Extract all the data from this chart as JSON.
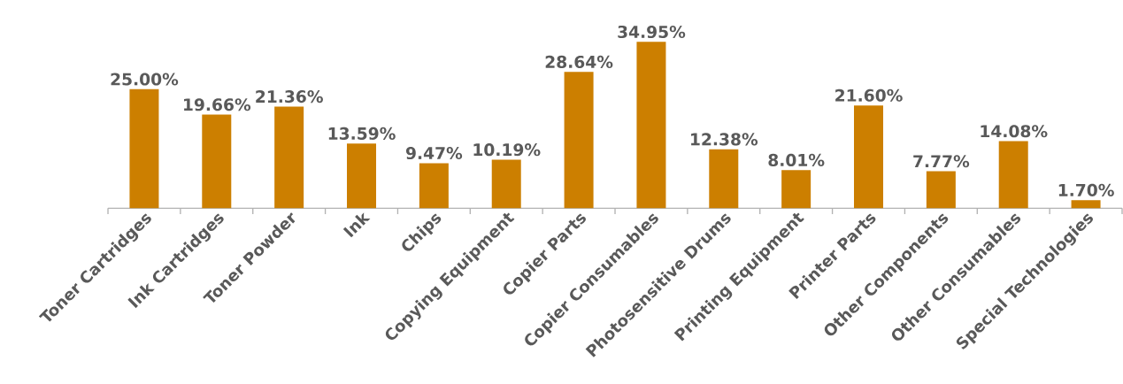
{
  "chart_data": {
    "type": "bar",
    "categories": [
      "Toner Cartridges",
      "Ink Cartridges",
      "Toner Powder",
      "Ink",
      "Chips",
      "Copying Equipment",
      "Copier Parts",
      "Copier Consumables",
      "Photosensitive Drums",
      "Printing Equipment",
      "Printer Parts",
      "Other Components",
      "Other Consumables",
      "Special Technologies"
    ],
    "values": [
      25.0,
      19.66,
      21.36,
      13.59,
      9.47,
      10.19,
      28.64,
      34.95,
      12.38,
      8.01,
      21.6,
      7.77,
      14.08,
      1.7
    ],
    "value_labels": [
      "25.00%",
      "19.66%",
      "21.36%",
      "13.59%",
      "9.47%",
      "10.19%",
      "28.64%",
      "34.95%",
      "12.38%",
      "8.01%",
      "21.60%",
      "7.77%",
      "14.08%",
      "1.70%"
    ],
    "color": "#cc7f00"
  }
}
